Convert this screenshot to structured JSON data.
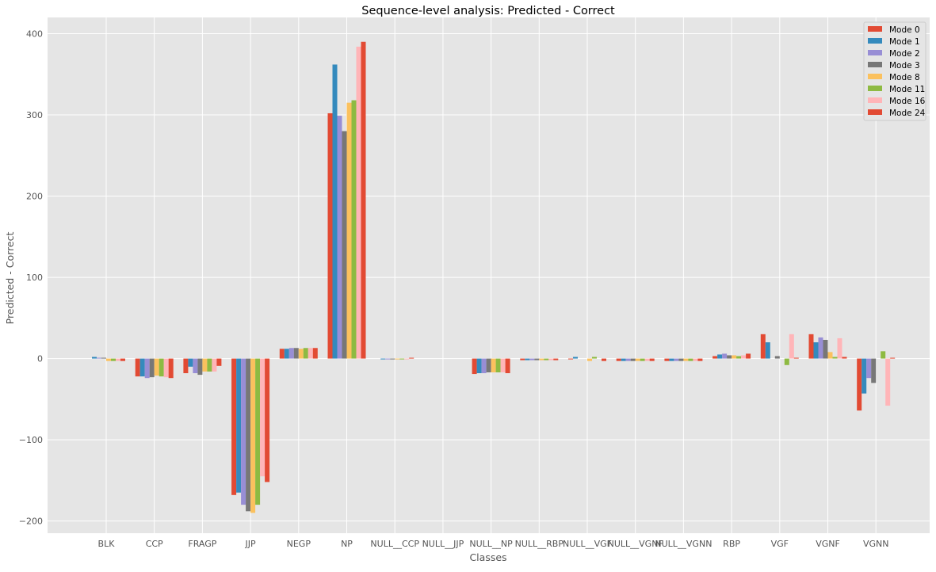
{
  "chart_data": {
    "type": "bar",
    "title": "Sequence-level analysis: Predicted - Correct",
    "xlabel": "Classes",
    "ylabel": "Predicted - Correct",
    "ylim": [
      -215,
      420
    ],
    "yticks": [
      -200,
      -100,
      0,
      100,
      200,
      300,
      400
    ],
    "grid": true,
    "legend_position": "top-right",
    "categories": [
      "BLK",
      "CCP",
      "FRAGP",
      "JJP",
      "NEGP",
      "NP",
      "NULL__CCP",
      "NULL__JJP",
      "NULL__NP",
      "NULL__RBP",
      "NULL__VGF",
      "NULL__VGNF",
      "NULL__VGNN",
      "RBP",
      "VGF",
      "VGNF",
      "VGNN"
    ],
    "series": [
      {
        "name": "Mode 0",
        "color": "#E24A33",
        "values": [
          0,
          -22,
          -18,
          -168,
          12,
          302,
          0,
          0,
          -19,
          -2,
          -1,
          -3,
          -3,
          3,
          30,
          30,
          -64
        ]
      },
      {
        "name": "Mode 1",
        "color": "#348ABD",
        "values": [
          2,
          -22,
          -10,
          -165,
          12,
          362,
          -1,
          0,
          -18,
          -2,
          2,
          -3,
          -3,
          5,
          20,
          20,
          -43
        ]
      },
      {
        "name": "Mode 2",
        "color": "#988ED5",
        "values": [
          1,
          -24,
          -18,
          -180,
          13,
          299,
          -1,
          0,
          -18,
          -2,
          0,
          -3,
          -3,
          6,
          0,
          26,
          -24
        ]
      },
      {
        "name": "Mode 3",
        "color": "#777777",
        "values": [
          1,
          -23,
          -20,
          -188,
          13,
          280,
          -1,
          0,
          -17,
          -2,
          0,
          -3,
          -3,
          4,
          3,
          23,
          -30
        ]
      },
      {
        "name": "Mode 8",
        "color": "#FBC15E",
        "values": [
          -3,
          -21,
          -16,
          -190,
          12,
          315,
          -1,
          0,
          -17,
          -2,
          -3,
          -3,
          -3,
          4,
          0,
          8,
          0
        ]
      },
      {
        "name": "Mode 11",
        "color": "#8EBA42",
        "values": [
          -3,
          -22,
          -16,
          -180,
          13,
          318,
          -1,
          0,
          -17,
          -2,
          2,
          -3,
          -3,
          3,
          -8,
          2,
          9
        ]
      },
      {
        "name": "Mode 16",
        "color": "#FFB5B8",
        "values": [
          -3,
          -23,
          -16,
          -145,
          13,
          384,
          -1,
          0,
          -17,
          -2,
          0,
          -3,
          -3,
          4,
          30,
          25,
          -58
        ]
      },
      {
        "name": "Mode 24",
        "color": "#E24A33",
        "values": [
          -3,
          -24,
          -9,
          -152,
          13,
          390,
          1,
          0,
          -18,
          -2,
          -3,
          -3,
          -3,
          6,
          1,
          2,
          1
        ]
      }
    ]
  }
}
